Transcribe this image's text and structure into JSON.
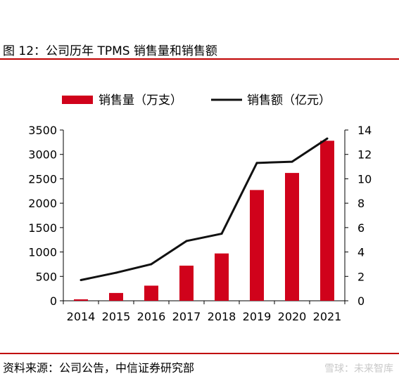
{
  "figure": {
    "title": "图 12：公司历年 TPMS 销售量和销售额",
    "source": "资料来源：公司公告，中信证券研究部",
    "watermark": "雪球：未来智库"
  },
  "colors": {
    "bar": "#d0021b",
    "line": "#111111",
    "rule": "#c00000"
  },
  "chart_data": {
    "type": "bar",
    "categories": [
      "2014",
      "2015",
      "2016",
      "2017",
      "2018",
      "2019",
      "2020",
      "2021"
    ],
    "series": [
      {
        "name": "销售量（万支）",
        "type": "bar",
        "axis": "left",
        "values": [
          30,
          160,
          310,
          720,
          970,
          2270,
          2620,
          3280
        ]
      },
      {
        "name": "销售额（亿元）",
        "type": "line",
        "axis": "right",
        "values": [
          1.7,
          2.3,
          3.0,
          4.9,
          5.5,
          11.3,
          11.4,
          13.3
        ]
      }
    ],
    "y_left": {
      "ylim": [
        0,
        3500
      ],
      "ticks": [
        0,
        500,
        1000,
        1500,
        2000,
        2500,
        3000,
        3500
      ]
    },
    "y_right": {
      "ylim": [
        0,
        14
      ],
      "ticks": [
        0,
        2,
        4,
        6,
        8,
        10,
        12,
        14
      ]
    },
    "legend": "top",
    "grid": false
  }
}
